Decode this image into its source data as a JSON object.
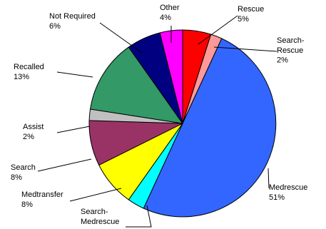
{
  "chart_data": {
    "type": "pie",
    "title": "",
    "legend": "none",
    "start_angle_deg": 0,
    "direction": "clockwise",
    "slices": [
      {
        "label": "Rescue",
        "value": 5,
        "pct_label": "5%",
        "color": "#ff0000"
      },
      {
        "label": "Search-\nRescue",
        "value": 2,
        "pct_label": "2%",
        "color": "#ff9999"
      },
      {
        "label": "Medrescue",
        "value": 51,
        "pct_label": "51%",
        "color": "#3366ff"
      },
      {
        "label": "Search-\nMedrescue",
        "value": 3,
        "pct_label": "",
        "color": "#00ffff"
      },
      {
        "label": "Medtransfer",
        "value": 8,
        "pct_label": "8%",
        "color": "#ffff00"
      },
      {
        "label": "Search",
        "value": 8,
        "pct_label": "8%",
        "color": "#993366"
      },
      {
        "label": "Assist",
        "value": 2,
        "pct_label": "2%",
        "color": "#c0c0c0"
      },
      {
        "label": "Recalled",
        "value": 13,
        "pct_label": "13%",
        "color": "#339966"
      },
      {
        "label": "Not Required",
        "value": 6,
        "pct_label": "6%",
        "color": "#000080"
      },
      {
        "label": "Other",
        "value": 4,
        "pct_label": "4%",
        "color": "#ff00ff"
      }
    ]
  }
}
